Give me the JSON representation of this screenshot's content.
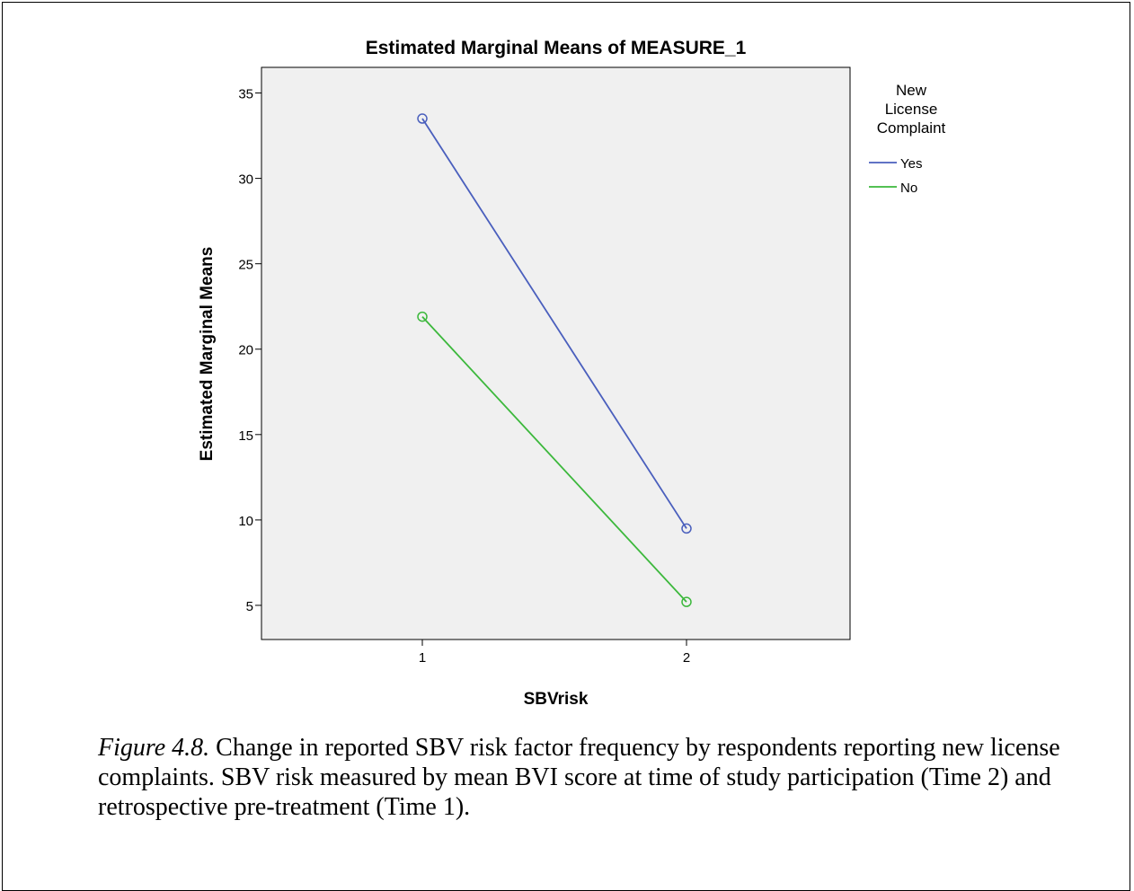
{
  "chart_data": {
    "type": "line",
    "title": "Estimated Marginal Means of MEASURE_1",
    "xlabel": "SBVrisk",
    "ylabel": "Estimated Marginal Means",
    "categories": [
      "1",
      "2"
    ],
    "ylim": [
      3,
      36.5
    ],
    "yticks": [
      5,
      10,
      15,
      20,
      25,
      30,
      35
    ],
    "grid": false,
    "plot_background": "#f0f0f0",
    "legend": {
      "title_lines": [
        "New",
        "License",
        "Complaint"
      ],
      "position": "right"
    },
    "series": [
      {
        "name": "Yes",
        "color": "#4a5fbd",
        "values": [
          33.5,
          9.5
        ]
      },
      {
        "name": "No",
        "color": "#3cb83c",
        "values": [
          21.9,
          5.2
        ]
      }
    ]
  },
  "caption": {
    "figure_label": "Figure 4.8.",
    "text": " Change in reported SBV risk factor frequency by respondents reporting new license complaints. SBV risk measured by mean BVI score at time of study participation (Time 2) and retrospective pre-treatment (Time 1)."
  }
}
